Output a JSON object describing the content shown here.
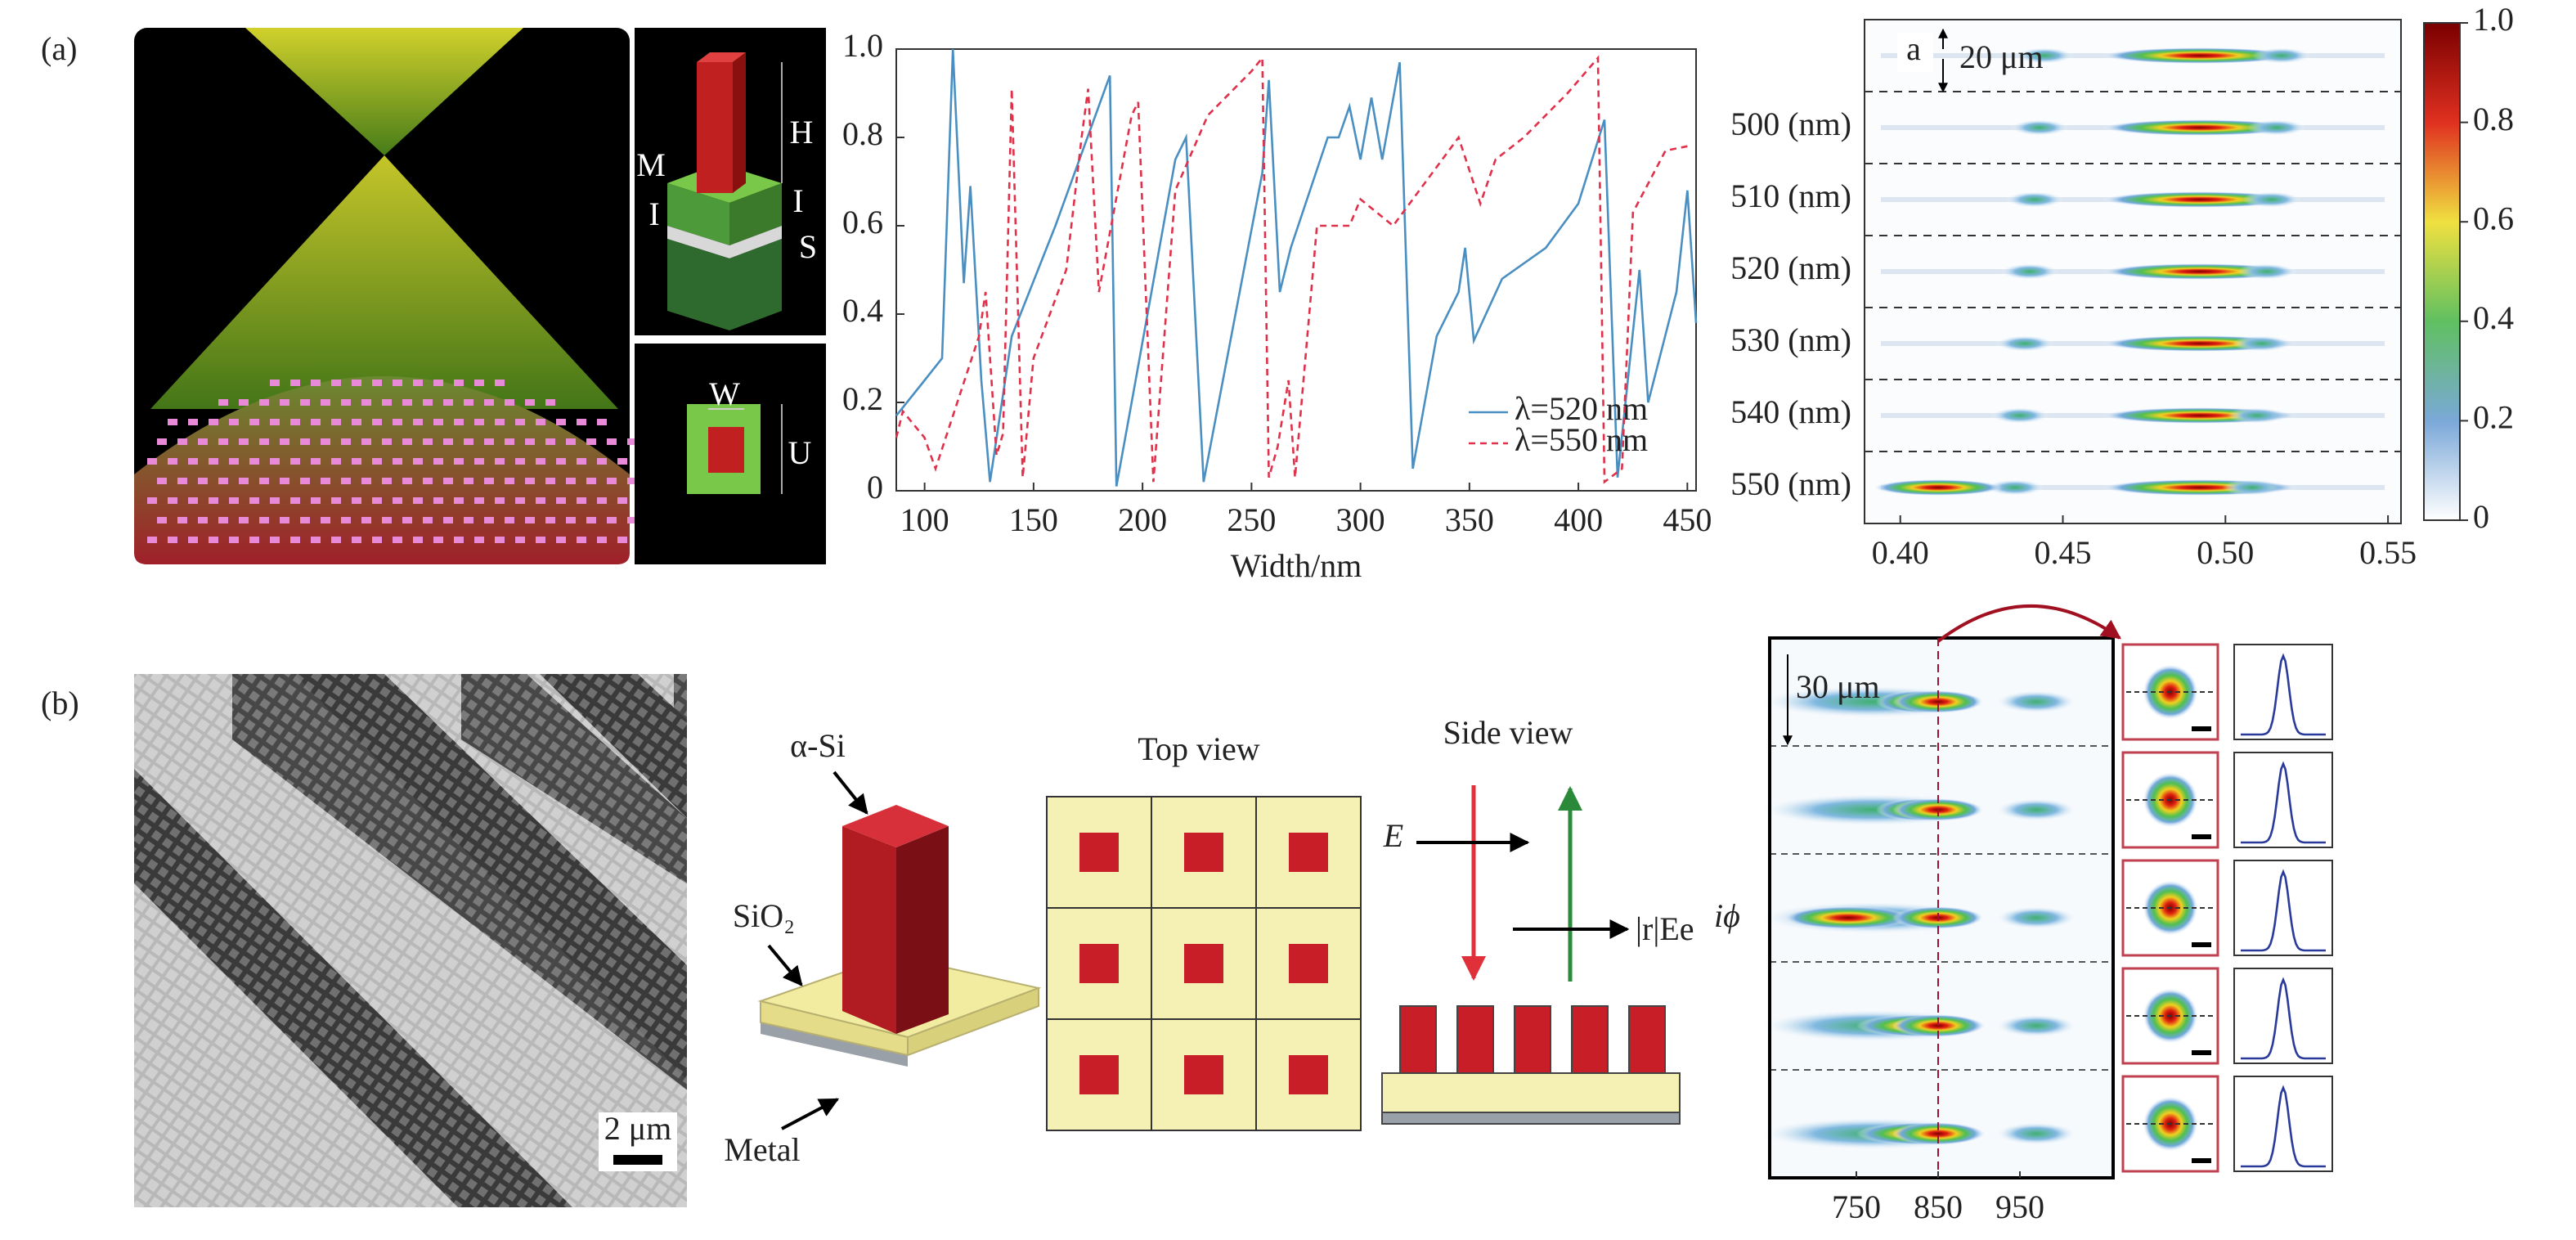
{
  "panels": {
    "a": {
      "label": "(a)",
      "schematic": {
        "m": "M",
        "i_left": "I",
        "h": "H",
        "i_right": "I",
        "s": "S",
        "w": "W",
        "u": "U"
      }
    },
    "b": {
      "label": "(b)",
      "scale_bar": "2 μm",
      "unit_cell": {
        "top": "α-Si",
        "middle": "SiO₂",
        "bottom": "Metal"
      },
      "top_view": "Top view",
      "side_view": "Side view",
      "incident": "E",
      "reflected": {
        "text": "|r|Ee",
        "superscript": "iϕ"
      }
    }
  },
  "chart_data": [
    {
      "type": "line",
      "x_label": "Width/nm",
      "xlim": [
        87,
        454
      ],
      "xticks": [
        100,
        150,
        200,
        250,
        300,
        350,
        400,
        450
      ],
      "ylim": [
        0,
        1
      ],
      "yticks": [
        0,
        0.2,
        0.4,
        0.6,
        0.8,
        {
          "value": 1,
          "label": "1.0"
        }
      ],
      "series": [
        {
          "name": "λ=520 nm",
          "color": "#4a8fc2",
          "dash": false,
          "x": [
            87,
            100,
            108,
            113,
            118,
            121,
            126,
            130,
            140,
            160,
            185,
            188,
            195,
            215,
            220,
            228,
            255,
            258,
            263,
            268,
            285,
            290,
            295,
            300,
            305,
            310,
            318,
            324,
            335,
            345,
            348,
            352,
            365,
            385,
            400,
            412,
            418,
            428,
            432,
            445,
            450,
            454
          ],
          "values": [
            0.17,
            0.25,
            0.3,
            1.0,
            0.47,
            0.69,
            0.25,
            0.02,
            0.35,
            0.6,
            0.94,
            0.01,
            0.2,
            0.75,
            0.8,
            0.02,
            0.72,
            0.93,
            0.45,
            0.55,
            0.8,
            0.8,
            0.87,
            0.75,
            0.89,
            0.75,
            0.97,
            0.05,
            0.35,
            0.45,
            0.55,
            0.34,
            0.48,
            0.55,
            0.65,
            0.84,
            0.03,
            0.5,
            0.2,
            0.45,
            0.68,
            0.38
          ]
        },
        {
          "name": "λ=550 nm",
          "color": "#e0304a",
          "dash": true,
          "x": [
            87,
            90,
            100,
            105,
            125,
            128,
            133,
            136,
            140,
            145,
            150,
            165,
            172,
            175,
            180,
            195,
            198,
            205,
            215,
            230,
            250,
            255,
            258,
            262,
            267,
            270,
            280,
            295,
            300,
            315,
            330,
            345,
            355,
            362,
            375,
            395,
            409,
            412,
            420,
            425,
            440,
            450
          ],
          "values": [
            0.12,
            0.18,
            0.12,
            0.05,
            0.35,
            0.45,
            0.08,
            0.13,
            0.91,
            0.03,
            0.3,
            0.5,
            0.8,
            0.91,
            0.45,
            0.85,
            0.88,
            0.02,
            0.68,
            0.85,
            0.95,
            0.98,
            0.03,
            0.1,
            0.25,
            0.03,
            0.6,
            0.6,
            0.66,
            0.6,
            0.7,
            0.8,
            0.65,
            0.75,
            0.8,
            0.9,
            0.98,
            0.02,
            0.05,
            0.63,
            0.77,
            0.78
          ]
        }
      ]
    },
    {
      "type": "heatmap",
      "corner_label": "a",
      "scale_label": "20 μm",
      "rows": [
        null,
        "500 (nm)",
        "510 (nm)",
        "520 (nm)",
        "530 (nm)",
        "540 (nm)",
        "550 (nm)"
      ],
      "xlim": [
        0.389,
        0.554
      ],
      "xticks": [
        {
          "value": 0.4,
          "label": "0.40"
        },
        0.45,
        {
          "value": 0.5,
          "label": "0.50"
        },
        0.55
      ],
      "colorbar": {
        "lim": [
          0,
          1
        ],
        "ticks": [
          0,
          0.2,
          0.4,
          0.6,
          0.8,
          {
            "value": 1,
            "label": "1.0"
          }
        ]
      }
    },
    {
      "type": "heatmap",
      "scale_label": "30 μm",
      "xlim": [
        644,
        1064
      ],
      "xticks": [
        750,
        850,
        950
      ]
    }
  ]
}
